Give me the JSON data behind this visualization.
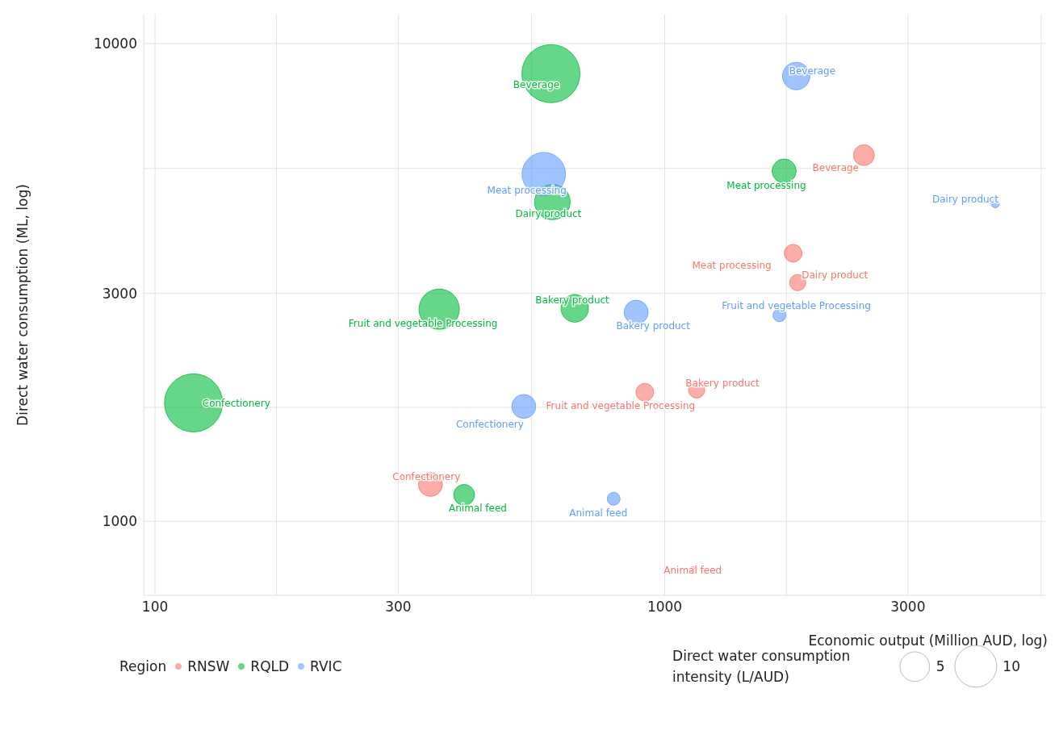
{
  "chart_data": {
    "type": "bubble",
    "xlabel": "Economic output (Million AUD, log)",
    "ylabel": "Direct water consumption (ML, log)",
    "legend_title": "Region",
    "log": "xy",
    "grid": true,
    "legend": "bottom left",
    "xlim": [
      95,
      5600
    ],
    "xticks": [
      100,
      {
        "value": 173,
        "label": null
      },
      300,
      {
        "value": 548,
        "label": null
      },
      1000,
      {
        "value": 1732,
        "label": null
      },
      3000,
      {
        "value": 5477,
        "label": null
      }
    ],
    "ylim": [
      700,
      11500
    ],
    "yticks": [
      1000,
      {
        "value": 1732,
        "label": null
      },
      3000,
      {
        "value": 5477,
        "label": null
      },
      10000
    ],
    "size_legend": [
      5,
      10
    ],
    "series": [
      {
        "name": "RNSW",
        "color": "#f8766d",
        "x": [
          2459,
          1786,
          1823,
          1155,
          914,
          347,
          1135
        ],
        "values": [
          5840,
          3640,
          3160,
          1883,
          1863,
          1195,
          790
        ],
        "sizes": [
          2.5,
          1.8,
          1.5,
          1.5,
          1.8,
          3.3,
          0.3
        ]
      },
      {
        "name": "RQLD",
        "color": "#00ba38",
        "x": [
          598,
          1715,
          602,
          361,
          666,
          119,
          404
        ],
        "values": [
          8650,
          5410,
          4660,
          2780,
          2790,
          1770,
          1136
        ],
        "sizes": [
          19.3,
          3.3,
          7.2,
          9.3,
          4.3,
          19.3,
          2.5
        ]
      },
      {
        "name": "RVIC",
        "color": "#619cff",
        "x": [
          1811,
          579,
          4450,
          879,
          1679,
          529,
          794
        ],
        "values": [
          8550,
          5330,
          4620,
          2740,
          2700,
          1740,
          1115
        ],
        "sizes": [
          4.3,
          10.8,
          0.37,
          3.3,
          0.95,
          3.3,
          0.95
        ]
      }
    ],
    "annotations": [
      {
        "text": "Beverage",
        "x": 2459,
        "y": 5840
      },
      {
        "text": "Meat processing",
        "x": 1786,
        "y": 3640
      },
      {
        "text": "Dairy product",
        "x": 1823,
        "y": 3160
      },
      {
        "text": "Bakery product",
        "x": 1155,
        "y": 1883
      },
      {
        "text": "Fruit and vegetable Processing",
        "x": 914,
        "y": 1863
      },
      {
        "text": "Confectionery",
        "x": 347,
        "y": 1195
      },
      {
        "text": "Animal feed",
        "x": 1135,
        "y": 790
      },
      {
        "text": "Beverage",
        "x": 598,
        "y": 8650
      },
      {
        "text": "Meat processing",
        "x": 1715,
        "y": 5410
      },
      {
        "text": "Dairy product",
        "x": 602,
        "y": 4660
      },
      {
        "text": "Fruit and vegetable Processing",
        "x": 361,
        "y": 2780
      },
      {
        "text": "Bakery product",
        "x": 666,
        "y": 2790
      },
      {
        "text": "Confectionery",
        "x": 119,
        "y": 1770
      },
      {
        "text": "Animal feed",
        "x": 404,
        "y": 1136
      },
      {
        "text": "Beverage",
        "x": 1811,
        "y": 8550
      },
      {
        "text": "Meat processing",
        "x": 579,
        "y": 5330
      },
      {
        "text": "Dairy product",
        "x": 4450,
        "y": 4620
      },
      {
        "text": "Bakery product",
        "x": 879,
        "y": 2740
      },
      {
        "text": "Fruit and vegetable Processing",
        "x": 1679,
        "y": 2700
      },
      {
        "text": "Confectionery",
        "x": 529,
        "y": 1740
      },
      {
        "text": "Animal feed",
        "x": 794,
        "y": 1115
      },
      "Direct water consumption intensity (L/AUD)"
    ]
  }
}
